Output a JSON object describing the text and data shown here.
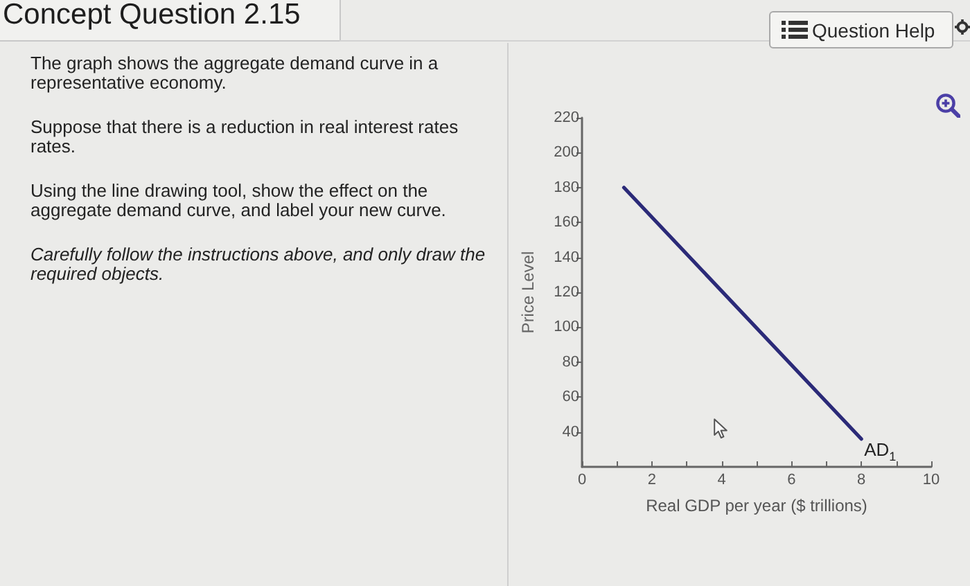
{
  "chart_data": {
    "type": "line",
    "title": "Concept Question 2.15",
    "annotations": [
      "Question Help",
      "The graph shows the aggregate demand curve in a representative economy.",
      "Suppose that there is a reduction in real interest rates rates.",
      "Using the line drawing tool, show the effect on the aggregate demand curve, and label your new curve.",
      "Carefully follow the instructions above, and only draw the required objects."
    ],
    "xlabel": "Real GDP per year ($ trillions)",
    "ylabel": "Price Level",
    "x": [
      1.2,
      8
    ],
    "series": [
      {
        "name": "AD$_{1}$",
        "color": "#2b2a78",
        "values": [
          180,
          36
        ]
      }
    ],
    "xlim": [
      0,
      10
    ],
    "xticks": [
      0,
      {
        "value": 1,
        "label": null
      },
      2,
      {
        "value": 3,
        "label": null
      },
      4,
      {
        "value": 5,
        "label": null
      },
      6,
      {
        "value": 7,
        "label": null
      },
      8,
      {
        "value": 9,
        "label": null
      },
      10
    ],
    "ylim": [
      20,
      220
    ],
    "yticks": [
      40,
      60,
      80,
      100,
      120,
      140,
      160,
      180,
      200,
      220
    ],
    "grid": false,
    "legend": false,
    "marker": "none",
    "line_style": "solid"
  }
}
